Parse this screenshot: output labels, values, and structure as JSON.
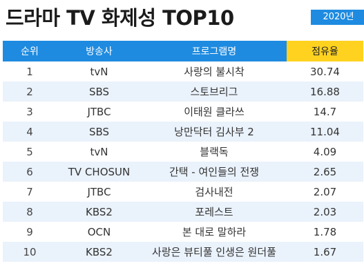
{
  "title": "드라마 TV 화제성 TOP10",
  "year": "2020년",
  "colors": {
    "header_blue": "#1e8be0",
    "highlight_yellow": "#ffd21f",
    "stripe": "#eaf2fb"
  },
  "table": {
    "headers": [
      "순위",
      "방송사",
      "프로그램명",
      "점유율"
    ],
    "rows": [
      {
        "rank": "1",
        "network": "tvN",
        "program": "사랑의 불시착",
        "share": "30.74"
      },
      {
        "rank": "2",
        "network": "SBS",
        "program": "스토브리그",
        "share": "16.88"
      },
      {
        "rank": "3",
        "network": "JTBC",
        "program": "이태원 클라쓰",
        "share": "14.7"
      },
      {
        "rank": "4",
        "network": "SBS",
        "program": "낭만닥터 김사부 2",
        "share": "11.04"
      },
      {
        "rank": "5",
        "network": "tvN",
        "program": "블랙독",
        "share": "4.09"
      },
      {
        "rank": "6",
        "network": "TV CHOSUN",
        "program": "간택 - 여인들의 전쟁",
        "share": "2.65"
      },
      {
        "rank": "7",
        "network": "JTBC",
        "program": "검사내전",
        "share": "2.07"
      },
      {
        "rank": "8",
        "network": "KBS2",
        "program": "포레스트",
        "share": "2.03"
      },
      {
        "rank": "9",
        "network": "OCN",
        "program": "본 대로 말하라",
        "share": "1.78"
      },
      {
        "rank": "10",
        "network": "KBS2",
        "program": "사랑은 뷰티풀 인생은 원더풀",
        "share": "1.67"
      }
    ]
  }
}
